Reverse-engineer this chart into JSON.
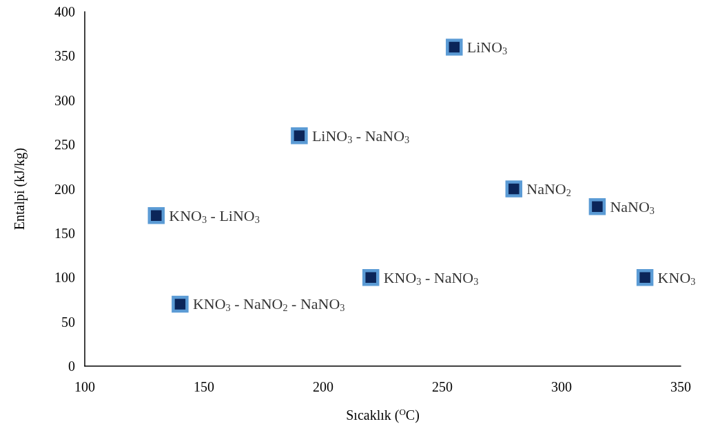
{
  "chart_data": {
    "type": "scatter",
    "xlabel": "Sıcaklık ($^{O}$C)",
    "ylabel": "Entalpi (kJ/kg)",
    "x": [
      255,
      190,
      280,
      315,
      130,
      220,
      335,
      140
    ],
    "series": [
      {
        "color": "#5b9bd5",
        "values": [
          360,
          260,
          200,
          180,
          170,
          100,
          100,
          70
        ]
      }
    ],
    "annotations": [
      {
        "text": "LiNO$_{3}$",
        "x": 255,
        "y": 360
      },
      {
        "text": "LiNO$_{3}$ - NaNO$_{3}$",
        "x": 190,
        "y": 260
      },
      {
        "text": "NaNO$_{2}$",
        "x": 280,
        "y": 200
      },
      {
        "text": "NaNO$_{3}$",
        "x": 315,
        "y": 180
      },
      {
        "text": "KNO$_{3}$ - LiNO$_{3}$",
        "x": 130,
        "y": 170
      },
      {
        "text": "KNO$_{3}$ - NaNO$_{3}$",
        "x": 220,
        "y": 100
      },
      {
        "text": "KNO$_{3}$",
        "x": 335,
        "y": 100
      },
      {
        "text": "KNO$_{3}$ - NaNO$_{2}$ - NaNO$_{3}$",
        "x": 140,
        "y": 70
      }
    ],
    "xlim": [
      100,
      350
    ],
    "xticks": [
      100,
      150,
      200,
      250,
      300,
      350
    ],
    "ylim": [
      0,
      400
    ],
    "yticks": [
      0,
      50,
      100,
      150,
      200,
      250,
      300,
      350,
      400
    ],
    "grid": false,
    "marker": "square"
  }
}
